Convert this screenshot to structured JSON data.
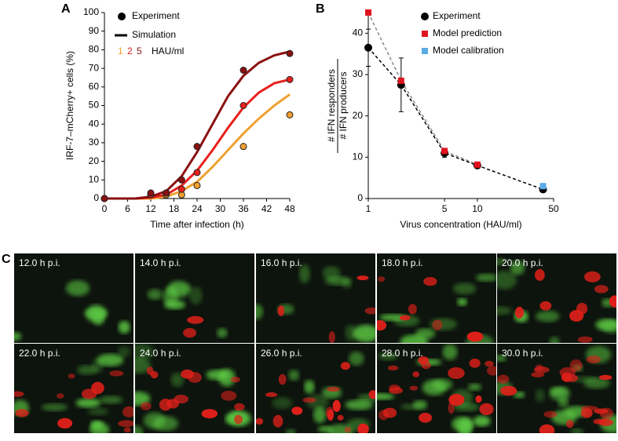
{
  "panel_labels": [
    "A",
    "B",
    "C"
  ],
  "chart_data": [
    {
      "type": "line",
      "xlabel": "Time after infection (h)",
      "ylabel": "IRF-7–mCherry+ cells (%)",
      "xlim": [
        0,
        48
      ],
      "xticks": [
        0,
        6,
        12,
        18,
        24,
        30,
        36,
        42,
        48
      ],
      "ylim": [
        0,
        100
      ],
      "yticks": [
        0,
        10,
        20,
        30,
        40,
        50,
        60,
        70,
        80,
        90,
        100
      ],
      "legend": [
        "Experiment",
        "Simulation"
      ],
      "legend_unit": "HAU/ml",
      "x": [
        0,
        12,
        16,
        20,
        24,
        36,
        48
      ],
      "sim_x": [
        0,
        4,
        8,
        12,
        16,
        20,
        24,
        28,
        32,
        36,
        40,
        44,
        48
      ],
      "series": [
        {
          "name": "1",
          "color": "#f0a030",
          "values": [
            0,
            2,
            2,
            2,
            7,
            28,
            45
          ],
          "sim_values": [
            0,
            0,
            0,
            0,
            1,
            4,
            9,
            17,
            26,
            35,
            43,
            50,
            56
          ]
        },
        {
          "name": "2",
          "color": "#e8201c",
          "values": [
            0,
            2,
            3,
            5,
            14,
            50,
            64
          ],
          "sim_values": [
            0,
            0,
            0,
            0.5,
            2,
            7,
            15,
            26,
            38,
            49,
            57,
            62,
            64
          ]
        },
        {
          "name": "5",
          "color": "#8b1010",
          "values": [
            0,
            3,
            3,
            10,
            28,
            69,
            78
          ],
          "sim_values": [
            0,
            0,
            0,
            1,
            4,
            12,
            25,
            40,
            55,
            66,
            73,
            77,
            79
          ]
        }
      ]
    },
    {
      "type": "scatter",
      "xlabel": "Virus concentration (HAU/ml)",
      "ylabel": [
        "# IFN responders",
        "# IFN producers"
      ],
      "xscale": "log",
      "xlim": [
        1,
        50
      ],
      "xticks": [
        1,
        5,
        10,
        50
      ],
      "ylim": [
        0,
        45
      ],
      "yticks": [
        0,
        10,
        20,
        30,
        40
      ],
      "series": [
        {
          "name": "Experiment",
          "color": "#000000",
          "line_color": "#000000",
          "x": [
            1,
            2,
            5,
            10,
            40
          ],
          "values": [
            36.5,
            27.5,
            11,
            8,
            2.2
          ],
          "errors": [
            4.5,
            6.5,
            1,
            0.5,
            0.3
          ]
        },
        {
          "name": "Model prediction",
          "color": "#e0141e",
          "line_color": "#888888",
          "x": [
            1,
            2,
            5,
            10
          ],
          "values": [
            45,
            28.5,
            11.5,
            8.2
          ]
        },
        {
          "name": "Model calibration",
          "color": "#5aaae6",
          "x": [
            40
          ],
          "values": [
            3
          ]
        }
      ]
    }
  ],
  "image_panel": {
    "labels": [
      "12.0 h p.i.",
      "14.0 h p.i.",
      "16.0 h p.i.",
      "18.0 h p.i.",
      "20.0 h p.i.",
      "22.0 h p.i.",
      "24.0 h p.i.",
      "26.0 h p.i.",
      "28.0 h p.i.",
      "30.0 h p.i."
    ]
  }
}
